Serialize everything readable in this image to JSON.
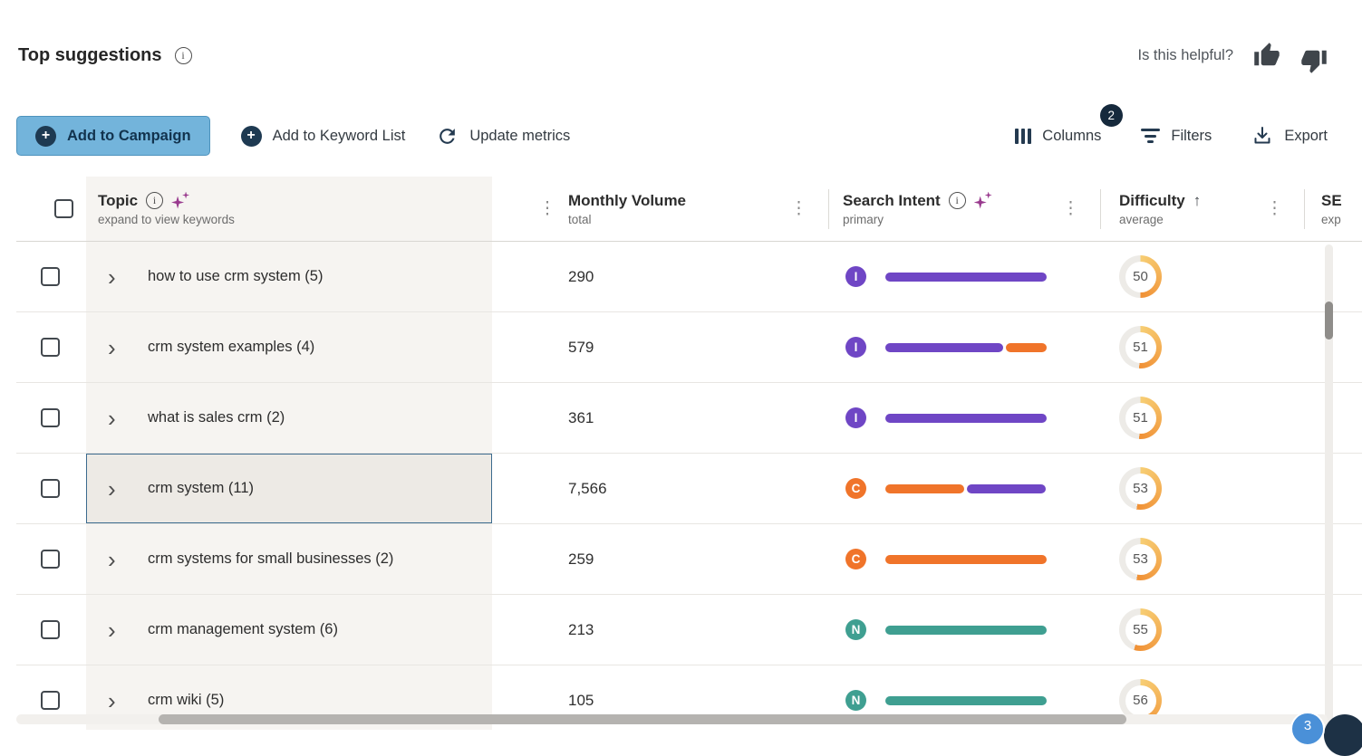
{
  "page": {
    "title": "Top suggestions",
    "helpful_label": "Is this helpful?"
  },
  "toolbar": {
    "add_to_campaign": "Add to Campaign",
    "add_to_keyword_list": "Add to Keyword List",
    "update_metrics": "Update metrics",
    "columns": "Columns",
    "columns_badge": "2",
    "filters": "Filters",
    "export": "Export"
  },
  "icons": {
    "kebab": "⋮",
    "chevron": "›",
    "sort_asc": "↑",
    "info": "i",
    "plus": "+"
  },
  "table": {
    "header": {
      "topic": {
        "label": "Topic",
        "sublabel": "expand to view keywords"
      },
      "monthly_volume": {
        "label": "Monthly Volume",
        "sublabel": "total"
      },
      "search_intent": {
        "label": "Search Intent",
        "sublabel": "primary"
      },
      "difficulty": {
        "label": "Difficulty",
        "sublabel": "average"
      },
      "serp": {
        "label": "SE",
        "sublabel": "exp"
      }
    },
    "intent_colors": {
      "I": "#6f46c5",
      "C": "#f0742a",
      "N": "#3f9f91"
    },
    "rows": [
      {
        "topic": "how to use crm system (5)",
        "volume": "290",
        "intent": "I",
        "segments": [
          {
            "intent": "I",
            "pct": 100
          }
        ],
        "difficulty": 50,
        "selected": false
      },
      {
        "topic": "crm system examples (4)",
        "volume": "579",
        "intent": "I",
        "segments": [
          {
            "intent": "I",
            "pct": 74
          },
          {
            "intent": "C",
            "pct": 26
          }
        ],
        "difficulty": 51,
        "selected": false
      },
      {
        "topic": "what is sales crm (2)",
        "volume": "361",
        "intent": "I",
        "segments": [
          {
            "intent": "I",
            "pct": 100
          }
        ],
        "difficulty": 51,
        "selected": false
      },
      {
        "topic": "crm system (11)",
        "volume": "7,566",
        "intent": "C",
        "segments": [
          {
            "intent": "C",
            "pct": 49
          },
          {
            "intent": "I",
            "pct": 49
          }
        ],
        "difficulty": 53,
        "selected": true
      },
      {
        "topic": "crm systems for small businesses (2)",
        "volume": "259",
        "intent": "C",
        "segments": [
          {
            "intent": "C",
            "pct": 100
          }
        ],
        "difficulty": 53,
        "selected": false
      },
      {
        "topic": "crm management system (6)",
        "volume": "213",
        "intent": "N",
        "segments": [
          {
            "intent": "N",
            "pct": 100
          }
        ],
        "difficulty": 55,
        "selected": false
      },
      {
        "topic": "crm wiki (5)",
        "volume": "105",
        "intent": "N",
        "segments": [
          {
            "intent": "N",
            "pct": 100
          }
        ],
        "difficulty": 56,
        "selected": false
      }
    ]
  },
  "widgets": {
    "chat_badge": "3"
  },
  "colors": {
    "primary_button_bg": "#73b4db",
    "navy": "#1e3a52",
    "intent_informational": "#6f46c5",
    "intent_commercial": "#f0742a",
    "intent_navigational": "#3f9f91",
    "donut_track": "#edebe7",
    "donut_start": "#f7ce74",
    "donut_end": "#f09035",
    "sparkle": "#993a8e",
    "selected_row_border": "#3c6b8e"
  }
}
